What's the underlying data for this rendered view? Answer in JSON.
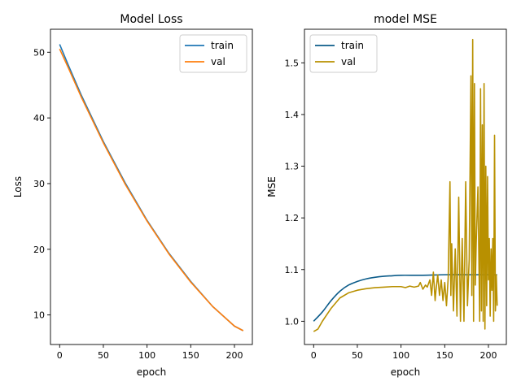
{
  "chart_data": [
    {
      "type": "line",
      "title": "Model Loss",
      "xlabel": "epoch",
      "ylabel": "Loss",
      "xlim": [
        -10.5,
        220.5
      ],
      "ylim": [
        5.5,
        53.5
      ],
      "xticks": [
        0,
        50,
        100,
        150,
        200
      ],
      "yticks": [
        10,
        20,
        30,
        40,
        50
      ],
      "grid": false,
      "legend_position": "top-right",
      "series": [
        {
          "name": "train",
          "color": "#1f77b4",
          "x": [
            0,
            10,
            25,
            50,
            75,
            100,
            125,
            150,
            175,
            200,
            210
          ],
          "y": [
            51.2,
            48.0,
            43.4,
            36.4,
            30.1,
            24.4,
            19.4,
            15.1,
            11.3,
            8.3,
            7.6
          ]
        },
        {
          "name": "val",
          "color": "#ff7f0e",
          "x": [
            0,
            10,
            25,
            50,
            75,
            100,
            125,
            150,
            175,
            200,
            210
          ],
          "y": [
            50.5,
            47.6,
            43.1,
            36.2,
            29.9,
            24.3,
            19.3,
            15.0,
            11.3,
            8.3,
            7.6
          ]
        }
      ]
    },
    {
      "type": "line",
      "title": "model MSE",
      "xlabel": "epoch",
      "ylabel": "MSE",
      "xlim": [
        -10.5,
        220.5
      ],
      "ylim": [
        0.955,
        1.565
      ],
      "xticks": [
        0,
        50,
        100,
        150,
        200
      ],
      "yticks": [
        1.0,
        1.1,
        1.2,
        1.3,
        1.4,
        1.5
      ],
      "grid": false,
      "legend_position": "top-left",
      "series": [
        {
          "name": "train",
          "color": "#0c5c8a",
          "x": [
            0,
            10,
            20,
            30,
            40,
            50,
            60,
            70,
            80,
            90,
            100,
            125,
            150,
            175,
            200,
            210
          ],
          "y": [
            1.0,
            1.018,
            1.04,
            1.058,
            1.07,
            1.077,
            1.082,
            1.085,
            1.087,
            1.088,
            1.089,
            1.089,
            1.09,
            1.09,
            1.09,
            1.09
          ],
          "smooth": true
        },
        {
          "name": "val",
          "color": "#b89000",
          "x": [
            0,
            5,
            10,
            20,
            30,
            40,
            50,
            60,
            70,
            80,
            90,
            100,
            105,
            110,
            115,
            120,
            122,
            125,
            128,
            130,
            133,
            135,
            137,
            139,
            140,
            142,
            144,
            146,
            148,
            150,
            152,
            154,
            156,
            157,
            158,
            160,
            162,
            164,
            166,
            168,
            170,
            172,
            174,
            176,
            178,
            180,
            181,
            182,
            183,
            184,
            185,
            186,
            188,
            190,
            191,
            192,
            193,
            194,
            195,
            196,
            197,
            198,
            199,
            200,
            201,
            202,
            203,
            204,
            205,
            206,
            207,
            208,
            209,
            210
          ],
          "y": [
            0.98,
            0.985,
            1.0,
            1.025,
            1.045,
            1.055,
            1.06,
            1.063,
            1.065,
            1.066,
            1.067,
            1.067,
            1.065,
            1.068,
            1.066,
            1.068,
            1.075,
            1.062,
            1.07,
            1.066,
            1.08,
            1.05,
            1.095,
            1.04,
            1.06,
            1.09,
            1.05,
            1.08,
            1.04,
            1.075,
            1.03,
            1.085,
            1.27,
            1.05,
            1.15,
            1.02,
            1.14,
            1.01,
            1.24,
            1.0,
            1.16,
            1.0,
            1.27,
            1.03,
            1.12,
            1.475,
            1.05,
            1.545,
            1.0,
            1.46,
            1.07,
            1.15,
            1.26,
            1.0,
            1.45,
            1.02,
            1.38,
            1.0,
            1.46,
            0.985,
            1.3,
            1.03,
            1.28,
            1.08,
            1.16,
            1.01,
            1.14,
            1.06,
            1.16,
            1.0,
            1.36,
            1.02,
            1.09,
            1.03
          ]
        }
      ]
    }
  ]
}
